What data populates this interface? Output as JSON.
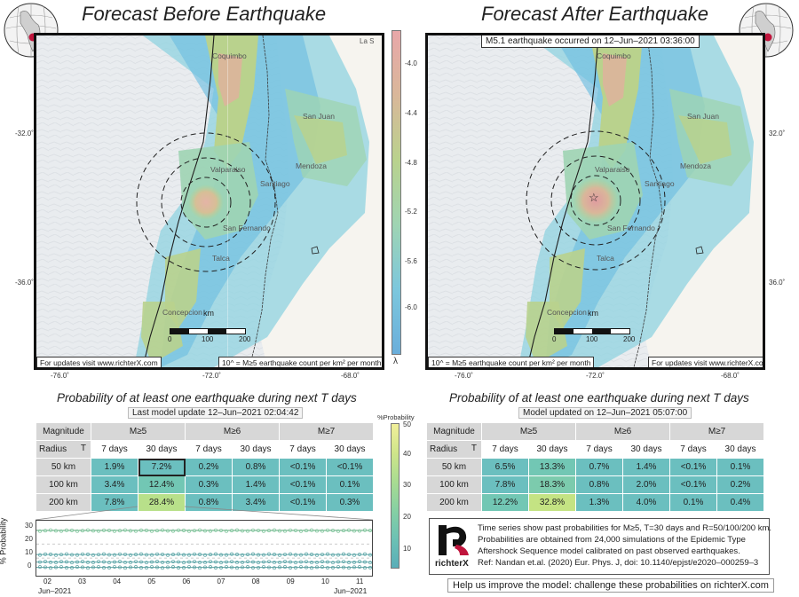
{
  "left": {
    "title": "Forecast Before Earthquake",
    "updates_note": "For updates visit www.richterX.com",
    "unit_note": "10^ = M≥5 earthquake count per km² per month",
    "corner_label": "La S",
    "cities": {
      "coquimbo": "Coquimbo",
      "san_juan": "San Juan",
      "mendoza": "Mendoza",
      "valparaiso": "Valparaiso",
      "santiago": "Santiago",
      "san_fernando": "San Fernando",
      "talca": "Talca",
      "concepcion": "Concepcion"
    },
    "lat_ticks": [
      "-32.0˚",
      "-36.0˚"
    ],
    "lon_ticks": [
      "-76.0˚",
      "-72.0˚",
      "-68.0˚"
    ],
    "scale": {
      "unit": "km",
      "t0": "0",
      "t1": "100",
      "t2": "200"
    }
  },
  "right": {
    "title": "Forecast After Earthquake",
    "event_note": "M5.1 earthquake occurred on 12–Jun–2021 03:36:00",
    "updates_note": "For updates visit www.richterX.com",
    "unit_note": "10^ = M≥5 earthquake count per km² per month",
    "cities": {
      "coquimbo": "Coquimbo",
      "san_juan": "San Juan",
      "mendoza": "Mendoza",
      "valparaiso": "Valparaiso",
      "santiago": "Santiago",
      "san_fernando": "San Fernando",
      "talca": "Talca",
      "concepcion": "Concepcion"
    },
    "lat_ticks": [
      "32.0˚",
      "36.0˚"
    ],
    "lon_ticks": [
      "-76.0˚",
      "-72.0˚",
      "-68.0˚"
    ],
    "scale": {
      "unit": "km",
      "t0": "0",
      "t1": "100",
      "t2": "200"
    }
  },
  "colorbar": {
    "ticks": [
      "-4.0",
      "-4.4",
      "-4.8",
      "-5.2",
      "-5.6",
      "-6.0"
    ],
    "symbol": "λ",
    "colors": [
      "#e8a7a9",
      "#d9b79a",
      "#b9d28d",
      "#9fd4b3",
      "#7cc7dd",
      "#6aaedb"
    ]
  },
  "prob_colorbar": {
    "label": "%Probability",
    "ticks": [
      "50",
      "40",
      "30",
      "20",
      "10"
    ]
  },
  "table_left": {
    "title": "Probability of at least one earthquake during next T days",
    "subtitle": "Last model update 12–Jun–2021 02:04:42",
    "h_magnitude": "Magnitude",
    "h_radius": "Radius",
    "h_t": "T",
    "magnitudes": [
      "M≥5",
      "M≥6",
      "M≥7"
    ],
    "periods": [
      "7 days",
      "30 days",
      "7 days",
      "30 days",
      "7 days",
      "30 days"
    ],
    "rows": [
      {
        "radius": "50 km",
        "values": [
          "1.9%",
          "7.2%",
          "0.2%",
          "0.8%",
          "<0.1%",
          "<0.1%"
        ]
      },
      {
        "radius": "100 km",
        "values": [
          "3.4%",
          "12.4%",
          "0.3%",
          "1.4%",
          "<0.1%",
          "0.1%"
        ]
      },
      {
        "radius": "200 km",
        "values": [
          "7.8%",
          "28.4%",
          "0.8%",
          "3.4%",
          "<0.1%",
          "0.3%"
        ]
      }
    ]
  },
  "table_right": {
    "title": "Probability of at least one earthquake during next T days",
    "subtitle": "Model updated on 12–Jun–2021 05:07:00",
    "h_magnitude": "Magnitude",
    "h_radius": "Radius",
    "h_t": "T",
    "magnitudes": [
      "M≥5",
      "M≥6",
      "M≥7"
    ],
    "periods": [
      "7 days",
      "30 days",
      "7 days",
      "30 days",
      "7 days",
      "30 days"
    ],
    "rows": [
      {
        "radius": "50 km",
        "values": [
          "6.5%",
          "13.3%",
          "0.7%",
          "1.4%",
          "<0.1%",
          "0.1%"
        ]
      },
      {
        "radius": "100 km",
        "values": [
          "7.8%",
          "18.3%",
          "0.8%",
          "2.0%",
          "<0.1%",
          "0.2%"
        ]
      },
      {
        "radius": "200 km",
        "values": [
          "12.2%",
          "32.8%",
          "1.3%",
          "4.0%",
          "0.1%",
          "0.4%"
        ]
      }
    ]
  },
  "timeseries": {
    "ylabel": "% Probability",
    "y_ticks": [
      "30",
      "20",
      "10",
      "0"
    ],
    "x_ticks": [
      "02",
      "03",
      "04",
      "05",
      "06",
      "07",
      "08",
      "09",
      "10",
      "11"
    ],
    "x_start": "Jun–2021",
    "x_end": "Jun–2021",
    "series_levels": [
      29.5,
      12.5,
      7.2,
      3.4
    ]
  },
  "info": {
    "brand": "richterX",
    "lines": [
      "Time series show past probabilities for M≥5, T=30 days and R=50/100/200 km.",
      "Probabilities are obtained from 24,000 simulations of the Epidemic Type",
      "Aftershock Sequence model calibrated on past observed earthquakes.",
      "Ref: Nandan et.al. (2020) Eur. Phys. J, doi: 10.1140/epjst/e2020–000259–3"
    ],
    "help": "Help us improve the model: challenge these probabilities on richterX.com"
  }
}
